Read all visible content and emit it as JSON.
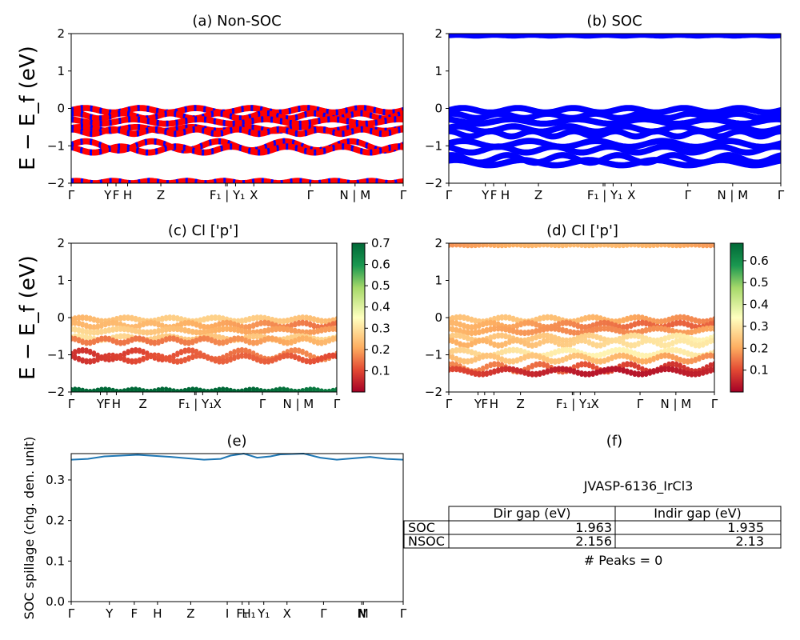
{
  "kpoint_labels": [
    "Γ",
    "Y",
    "F",
    "H",
    "Z",
    "F₁ | Y₁",
    "X",
    "Γ",
    "N | M",
    "Γ"
  ],
  "kpoint_labels_ab": [
    "Γ",
    "YFH",
    "Z",
    "F₁ | Y₁ X",
    "Γ",
    "N | M",
    "Γ"
  ],
  "kpoint_labels_e": [
    "Γ",
    "Y",
    "F",
    "H",
    "Z",
    "I",
    "F₁",
    "H₁",
    "Y₁",
    "X",
    "Γ",
    "N",
    "M",
    "Γ"
  ],
  "colors": {
    "nonsoc_primary": "#ff0000",
    "nonsoc_secondary": "#0000ff",
    "soc": "#0000ff",
    "spillage_line": "#1f77b4"
  },
  "chart_data": [
    {
      "id": "a",
      "type": "line",
      "title": "(a) Non-SOC",
      "ylabel": "E − E_f (eV)",
      "ylim": [
        -2,
        2
      ],
      "yticks": [
        "2",
        "1",
        "0",
        "−1",
        "−2"
      ],
      "series": [
        {
          "center": -0.05,
          "amp": 0.06,
          "freq": 6,
          "phase": 0.0
        },
        {
          "center": -0.2,
          "amp": 0.07,
          "freq": 7,
          "phase": 1.0
        },
        {
          "center": -0.35,
          "amp": 0.06,
          "freq": 5,
          "phase": 2.0
        },
        {
          "center": -0.55,
          "amp": 0.05,
          "freq": 6,
          "phase": 0.5
        },
        {
          "center": -0.62,
          "amp": 0.06,
          "freq": 8,
          "phase": 1.5
        },
        {
          "center": -1.0,
          "amp": 0.12,
          "freq": 5,
          "phase": 0.2
        },
        {
          "center": -1.1,
          "amp": 0.08,
          "freq": 6,
          "phase": 2.2
        },
        {
          "center": -1.97,
          "amp": 0.03,
          "freq": 9,
          "phase": 0.7
        }
      ]
    },
    {
      "id": "b",
      "type": "line",
      "title": "(b) SOC",
      "ylabel": "",
      "ylim": [
        -2,
        2
      ],
      "yticks": [
        "2",
        "1",
        "0",
        "−1",
        "−2"
      ],
      "series": [
        {
          "center": 1.96,
          "amp": 0.01,
          "freq": 9,
          "phase": 0.0
        },
        {
          "center": -0.05,
          "amp": 0.06,
          "freq": 6,
          "phase": 0.0
        },
        {
          "center": -0.2,
          "amp": 0.06,
          "freq": 7,
          "phase": 1.0
        },
        {
          "center": -0.35,
          "amp": 0.06,
          "freq": 5,
          "phase": 2.0
        },
        {
          "center": -0.55,
          "amp": 0.07,
          "freq": 6,
          "phase": 0.5
        },
        {
          "center": -0.68,
          "amp": 0.07,
          "freq": 8,
          "phase": 1.5
        },
        {
          "center": -0.95,
          "amp": 0.08,
          "freq": 5,
          "phase": 0.2
        },
        {
          "center": -1.1,
          "amp": 0.08,
          "freq": 6,
          "phase": 2.2
        },
        {
          "center": -1.35,
          "amp": 0.1,
          "freq": 6,
          "phase": 1.2
        },
        {
          "center": -1.45,
          "amp": 0.07,
          "freq": 5,
          "phase": 0.9
        }
      ]
    },
    {
      "id": "c",
      "type": "scatter",
      "title": "(c)  Cl ['p']",
      "ylabel": "E − E_f (eV)",
      "ylim": [
        -2,
        2
      ],
      "yticks": [
        "2",
        "1",
        "0",
        "−1",
        "−2"
      ],
      "colorbar": {
        "ticks": [
          "0.7",
          "0.6",
          "0.5",
          "0.4",
          "0.3",
          "0.2",
          "0.1"
        ],
        "range": [
          0.0,
          0.7
        ]
      },
      "series": [
        {
          "center": -0.05,
          "amp": 0.05,
          "freq": 6,
          "phase": 0.0,
          "w": 0.22
        },
        {
          "center": -0.2,
          "amp": 0.06,
          "freq": 7,
          "phase": 1.0,
          "w": 0.18
        },
        {
          "center": -0.35,
          "amp": 0.05,
          "freq": 5,
          "phase": 2.0,
          "w": 0.24
        },
        {
          "center": -0.55,
          "amp": 0.05,
          "freq": 6,
          "phase": 0.5,
          "w": 0.3
        },
        {
          "center": -0.62,
          "amp": 0.06,
          "freq": 8,
          "phase": 1.5,
          "w": 0.2
        },
        {
          "center": -1.0,
          "amp": 0.12,
          "freq": 5,
          "phase": 0.2,
          "w": 0.12
        },
        {
          "center": -1.1,
          "amp": 0.08,
          "freq": 6,
          "phase": 2.2,
          "w": 0.08
        },
        {
          "center": -1.97,
          "amp": 0.03,
          "freq": 9,
          "phase": 0.7,
          "w": 0.68
        }
      ]
    },
    {
      "id": "d",
      "type": "scatter",
      "title": "(d) Cl ['p']",
      "ylabel": "",
      "ylim": [
        -2,
        2
      ],
      "yticks": [
        "2",
        "1",
        "0",
        "−1",
        "−2"
      ],
      "colorbar": {
        "ticks": [
          "0.6",
          "0.5",
          "0.4",
          "0.3",
          "0.2",
          "0.1"
        ],
        "range": [
          0.0,
          0.68
        ]
      },
      "series": [
        {
          "center": 1.96,
          "amp": 0.01,
          "freq": 9,
          "phase": 0.0,
          "w": 0.18
        },
        {
          "center": -0.05,
          "amp": 0.06,
          "freq": 6,
          "phase": 0.0,
          "w": 0.2
        },
        {
          "center": -0.2,
          "amp": 0.06,
          "freq": 7,
          "phase": 1.0,
          "w": 0.18
        },
        {
          "center": -0.35,
          "amp": 0.06,
          "freq": 5,
          "phase": 2.0,
          "w": 0.22
        },
        {
          "center": -0.55,
          "amp": 0.07,
          "freq": 6,
          "phase": 0.5,
          "w": 0.3
        },
        {
          "center": -0.68,
          "amp": 0.07,
          "freq": 8,
          "phase": 1.5,
          "w": 0.26
        },
        {
          "center": -0.95,
          "amp": 0.08,
          "freq": 5,
          "phase": 0.2,
          "w": 0.28
        },
        {
          "center": -1.1,
          "amp": 0.08,
          "freq": 6,
          "phase": 2.2,
          "w": 0.2
        },
        {
          "center": -1.35,
          "amp": 0.1,
          "freq": 6,
          "phase": 1.2,
          "w": 0.12
        },
        {
          "center": -1.45,
          "amp": 0.07,
          "freq": 5,
          "phase": 0.9,
          "w": 0.08
        }
      ]
    },
    {
      "id": "e",
      "type": "line",
      "title": "(e)",
      "ylabel": "SOC spillage (chg. den. unit)",
      "ylim": [
        0.0,
        0.365
      ],
      "yticks": [
        "0.3",
        "0.2",
        "0.1",
        "0.0"
      ],
      "x": [
        0,
        0.05,
        0.1,
        0.2,
        0.3,
        0.4,
        0.45,
        0.48,
        0.52,
        0.56,
        0.6,
        0.63,
        0.7,
        0.75,
        0.8,
        0.9,
        0.95,
        1.0
      ],
      "y": [
        0.35,
        0.352,
        0.358,
        0.362,
        0.357,
        0.35,
        0.352,
        0.36,
        0.365,
        0.355,
        0.358,
        0.363,
        0.365,
        0.355,
        0.35,
        0.357,
        0.352,
        0.35
      ]
    }
  ],
  "panel_f": {
    "title": "(f)",
    "subtitle": "JVASP-6136_IrCl3",
    "col_headers": [
      "Dir gap (eV)",
      "Indir gap (eV)"
    ],
    "rows": [
      {
        "label": "SOC",
        "dir": "1.963",
        "indir": "1.935"
      },
      {
        "label": "NSOC",
        "dir": "2.156",
        "indir": "2.13"
      }
    ],
    "peaks": "# Peaks = 0"
  }
}
